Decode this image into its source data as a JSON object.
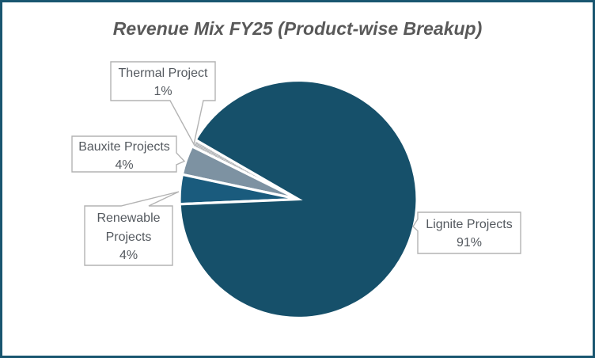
{
  "chart_data": {
    "type": "pie",
    "title": "Revenue Mix FY25 (Product-wise Breakup)",
    "categories": [
      "Lignite Projects",
      "Renewable Projects",
      "Bauxite Projects",
      "Thermal Project"
    ],
    "values": [
      91,
      4,
      4,
      1
    ],
    "unit": "%",
    "legend_position": "none",
    "start_angle_deg": 150,
    "direction": "ccw",
    "slices": [
      {
        "name": "Thermal Project",
        "value": 1,
        "color": "#C9CBCD",
        "pattern": "dots",
        "pattern_dot_color": "#9EA2A6"
      },
      {
        "name": "Bauxite Projects",
        "value": 4,
        "color": "#7D92A2"
      },
      {
        "name": "Renewable Projects",
        "value": 4,
        "color": "#1A5B7D"
      },
      {
        "name": "Lignite Projects",
        "value": 91,
        "color": "#16506A"
      }
    ]
  },
  "callouts": {
    "thermal": {
      "lines": [
        "Thermal Project",
        "1%"
      ]
    },
    "bauxite": {
      "lines": [
        "Bauxite Projects",
        "4%"
      ]
    },
    "renewable": {
      "lines": [
        "Renewable",
        "Projects",
        "4%"
      ]
    },
    "lignite": {
      "lines": [
        "Lignite Projects",
        "91%"
      ]
    }
  },
  "style": {
    "frame_border": "#195670",
    "background": "#FFFFFF",
    "title_color": "#595959",
    "label_color": "#54595F",
    "callout_border": "#B3B3B3",
    "slice_gap_color": "#FFFFFF"
  }
}
